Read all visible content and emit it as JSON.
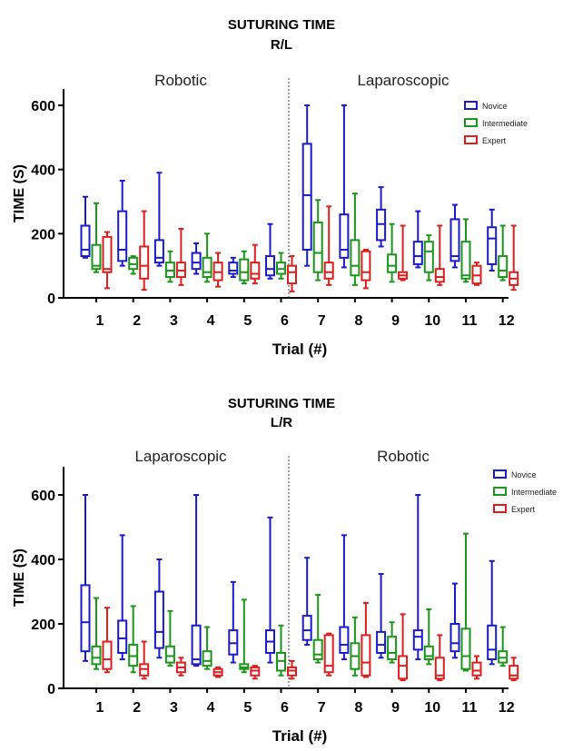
{
  "chart_data": [
    {
      "type": "box",
      "title": "SUTURING TIME",
      "subtitle": "R/L",
      "xlabel": "Trial (#)",
      "ylabel": "TIME (S)",
      "ylim": [
        0,
        650
      ],
      "yticks": [
        0,
        200,
        400,
        600
      ],
      "sections": [
        "Robotic",
        "Laparoscopic"
      ],
      "categories": [
        "1",
        "2",
        "3",
        "4",
        "5",
        "6",
        "7",
        "8",
        "9",
        "10",
        "11",
        "12"
      ],
      "legend": {
        "position": "top-right"
      },
      "series": [
        {
          "name": "Novice",
          "color": "#1a1ac8",
          "boxes": [
            {
              "min": 125,
              "q1": 130,
              "median": 150,
              "q3": 225,
              "max": 315
            },
            {
              "min": 100,
              "q1": 115,
              "median": 150,
              "q3": 270,
              "max": 365
            },
            {
              "min": 100,
              "q1": 110,
              "median": 125,
              "q3": 180,
              "max": 390
            },
            {
              "min": 75,
              "q1": 90,
              "median": 110,
              "q3": 140,
              "max": 170
            },
            {
              "min": 65,
              "q1": 75,
              "median": 85,
              "q3": 110,
              "max": 125
            },
            {
              "min": 60,
              "q1": 70,
              "median": 90,
              "q3": 130,
              "max": 230
            },
            {
              "min": 100,
              "q1": 150,
              "median": 320,
              "q3": 480,
              "max": 600
            },
            {
              "min": 95,
              "q1": 125,
              "median": 150,
              "q3": 260,
              "max": 600
            },
            {
              "min": 160,
              "q1": 180,
              "median": 230,
              "q3": 275,
              "max": 345
            },
            {
              "min": 95,
              "q1": 105,
              "median": 130,
              "q3": 175,
              "max": 270
            },
            {
              "min": 95,
              "q1": 115,
              "median": 130,
              "q3": 245,
              "max": 290
            },
            {
              "min": 85,
              "q1": 105,
              "median": 185,
              "q3": 220,
              "max": 275
            }
          ]
        },
        {
          "name": "Intermediate",
          "color": "#1a961a",
          "boxes": [
            {
              "min": 80,
              "q1": 90,
              "median": 100,
              "q3": 165,
              "max": 295
            },
            {
              "min": 75,
              "q1": 90,
              "median": 105,
              "q3": 125,
              "max": 130
            },
            {
              "min": 50,
              "q1": 65,
              "median": 85,
              "q3": 110,
              "max": 145
            },
            {
              "min": 50,
              "q1": 65,
              "median": 80,
              "q3": 125,
              "max": 200
            },
            {
              "min": 45,
              "q1": 55,
              "median": 80,
              "q3": 120,
              "max": 145
            },
            {
              "min": 60,
              "q1": 75,
              "median": 90,
              "q3": 110,
              "max": 140
            },
            {
              "min": 55,
              "q1": 80,
              "median": 140,
              "q3": 235,
              "max": 305
            },
            {
              "min": 40,
              "q1": 70,
              "median": 100,
              "q3": 180,
              "max": 325
            },
            {
              "min": 50,
              "q1": 80,
              "median": 100,
              "q3": 135,
              "max": 230
            },
            {
              "min": 55,
              "q1": 80,
              "median": 145,
              "q3": 175,
              "max": 195
            },
            {
              "min": 50,
              "q1": 60,
              "median": 70,
              "q3": 175,
              "max": 245
            },
            {
              "min": 55,
              "q1": 65,
              "median": 85,
              "q3": 130,
              "max": 225
            }
          ]
        },
        {
          "name": "Expert",
          "color": "#dc1e1e",
          "boxes": [
            {
              "min": 30,
              "q1": 80,
              "median": 90,
              "q3": 190,
              "max": 205
            },
            {
              "min": 25,
              "q1": 60,
              "median": 100,
              "q3": 160,
              "max": 270
            },
            {
              "min": 40,
              "q1": 65,
              "median": 85,
              "q3": 110,
              "max": 215
            },
            {
              "min": 35,
              "q1": 55,
              "median": 80,
              "q3": 110,
              "max": 140
            },
            {
              "min": 45,
              "q1": 60,
              "median": 75,
              "q3": 110,
              "max": 165
            },
            {
              "min": 20,
              "q1": 45,
              "median": 80,
              "q3": 100,
              "max": 130
            },
            {
              "min": 40,
              "q1": 60,
              "median": 80,
              "q3": 110,
              "max": 285
            },
            {
              "min": 30,
              "q1": 55,
              "median": 80,
              "q3": 145,
              "max": 150
            },
            {
              "min": 55,
              "q1": 60,
              "median": 70,
              "q3": 80,
              "max": 225
            },
            {
              "min": 40,
              "q1": 50,
              "median": 65,
              "q3": 90,
              "max": 225
            },
            {
              "min": 40,
              "q1": 45,
              "median": 70,
              "q3": 100,
              "max": 110
            },
            {
              "min": 25,
              "q1": 40,
              "median": 60,
              "q3": 80,
              "max": 225
            }
          ]
        }
      ]
    },
    {
      "type": "box",
      "title": "SUTURING TIME",
      "subtitle": "L/R",
      "xlabel": "Trial (#)",
      "ylabel": "TIME (S)",
      "ylim": [
        0,
        650
      ],
      "yticks": [
        0,
        200,
        400,
        600
      ],
      "sections": [
        "Laparoscopic",
        "Robotic"
      ],
      "categories": [
        "1",
        "2",
        "3",
        "4",
        "5",
        "6",
        "7",
        "8",
        "9",
        "10",
        "11",
        "12"
      ],
      "legend": {
        "position": "top-right"
      },
      "series": [
        {
          "name": "Novice",
          "color": "#1a1ac8",
          "boxes": [
            {
              "min": 85,
              "q1": 115,
              "median": 205,
              "q3": 320,
              "max": 600
            },
            {
              "min": 90,
              "q1": 110,
              "median": 155,
              "q3": 210,
              "max": 475
            },
            {
              "min": 95,
              "q1": 125,
              "median": 175,
              "q3": 300,
              "max": 400
            },
            {
              "min": 70,
              "q1": 75,
              "median": 90,
              "q3": 195,
              "max": 600
            },
            {
              "min": 80,
              "q1": 105,
              "median": 140,
              "q3": 180,
              "max": 330
            },
            {
              "min": 80,
              "q1": 110,
              "median": 145,
              "q3": 180,
              "max": 530
            },
            {
              "min": 135,
              "q1": 150,
              "median": 180,
              "q3": 225,
              "max": 405
            },
            {
              "min": 90,
              "q1": 110,
              "median": 135,
              "q3": 190,
              "max": 475
            },
            {
              "min": 95,
              "q1": 110,
              "median": 135,
              "q3": 175,
              "max": 355
            },
            {
              "min": 90,
              "q1": 120,
              "median": 160,
              "q3": 180,
              "max": 600
            },
            {
              "min": 95,
              "q1": 115,
              "median": 140,
              "q3": 200,
              "max": 325
            },
            {
              "min": 75,
              "q1": 90,
              "median": 120,
              "q3": 195,
              "max": 395
            }
          ]
        },
        {
          "name": "Intermediate",
          "color": "#1a961a",
          "boxes": [
            {
              "min": 60,
              "q1": 75,
              "median": 95,
              "q3": 130,
              "max": 280
            },
            {
              "min": 50,
              "q1": 70,
              "median": 100,
              "q3": 135,
              "max": 255
            },
            {
              "min": 70,
              "q1": 80,
              "median": 100,
              "q3": 130,
              "max": 240
            },
            {
              "min": 60,
              "q1": 70,
              "median": 85,
              "q3": 115,
              "max": 190
            },
            {
              "min": 50,
              "q1": 60,
              "median": 65,
              "q3": 75,
              "max": 275
            },
            {
              "min": 40,
              "q1": 55,
              "median": 85,
              "q3": 110,
              "max": 195
            },
            {
              "min": 80,
              "q1": 90,
              "median": 105,
              "q3": 150,
              "max": 290
            },
            {
              "min": 40,
              "q1": 60,
              "median": 100,
              "q3": 140,
              "max": 220
            },
            {
              "min": 80,
              "q1": 90,
              "median": 110,
              "q3": 160,
              "max": 205
            },
            {
              "min": 75,
              "q1": 90,
              "median": 100,
              "q3": 130,
              "max": 245
            },
            {
              "min": 55,
              "q1": 60,
              "median": 100,
              "q3": 185,
              "max": 480
            },
            {
              "min": 70,
              "q1": 80,
              "median": 95,
              "q3": 115,
              "max": 190
            }
          ]
        },
        {
          "name": "Expert",
          "color": "#dc1e1e",
          "boxes": [
            {
              "min": 50,
              "q1": 60,
              "median": 90,
              "q3": 145,
              "max": 250
            },
            {
              "min": 30,
              "q1": 40,
              "median": 60,
              "q3": 75,
              "max": 145
            },
            {
              "min": 40,
              "q1": 50,
              "median": 65,
              "q3": 80,
              "max": 95
            },
            {
              "min": 35,
              "q1": 40,
              "median": 50,
              "q3": 60,
              "max": 65
            },
            {
              "min": 30,
              "q1": 40,
              "median": 55,
              "q3": 65,
              "max": 70
            },
            {
              "min": 30,
              "q1": 40,
              "median": 55,
              "q3": 65,
              "max": 85
            },
            {
              "min": 40,
              "q1": 50,
              "median": 70,
              "q3": 165,
              "max": 170
            },
            {
              "min": 35,
              "q1": 40,
              "median": 80,
              "q3": 165,
              "max": 265
            },
            {
              "min": 25,
              "q1": 30,
              "median": 70,
              "q3": 100,
              "max": 230
            },
            {
              "min": 25,
              "q1": 30,
              "median": 40,
              "q3": 95,
              "max": 165
            },
            {
              "min": 30,
              "q1": 40,
              "median": 55,
              "q3": 80,
              "max": 100
            },
            {
              "min": 25,
              "q1": 30,
              "median": 40,
              "q3": 70,
              "max": 95
            }
          ]
        }
      ]
    }
  ]
}
